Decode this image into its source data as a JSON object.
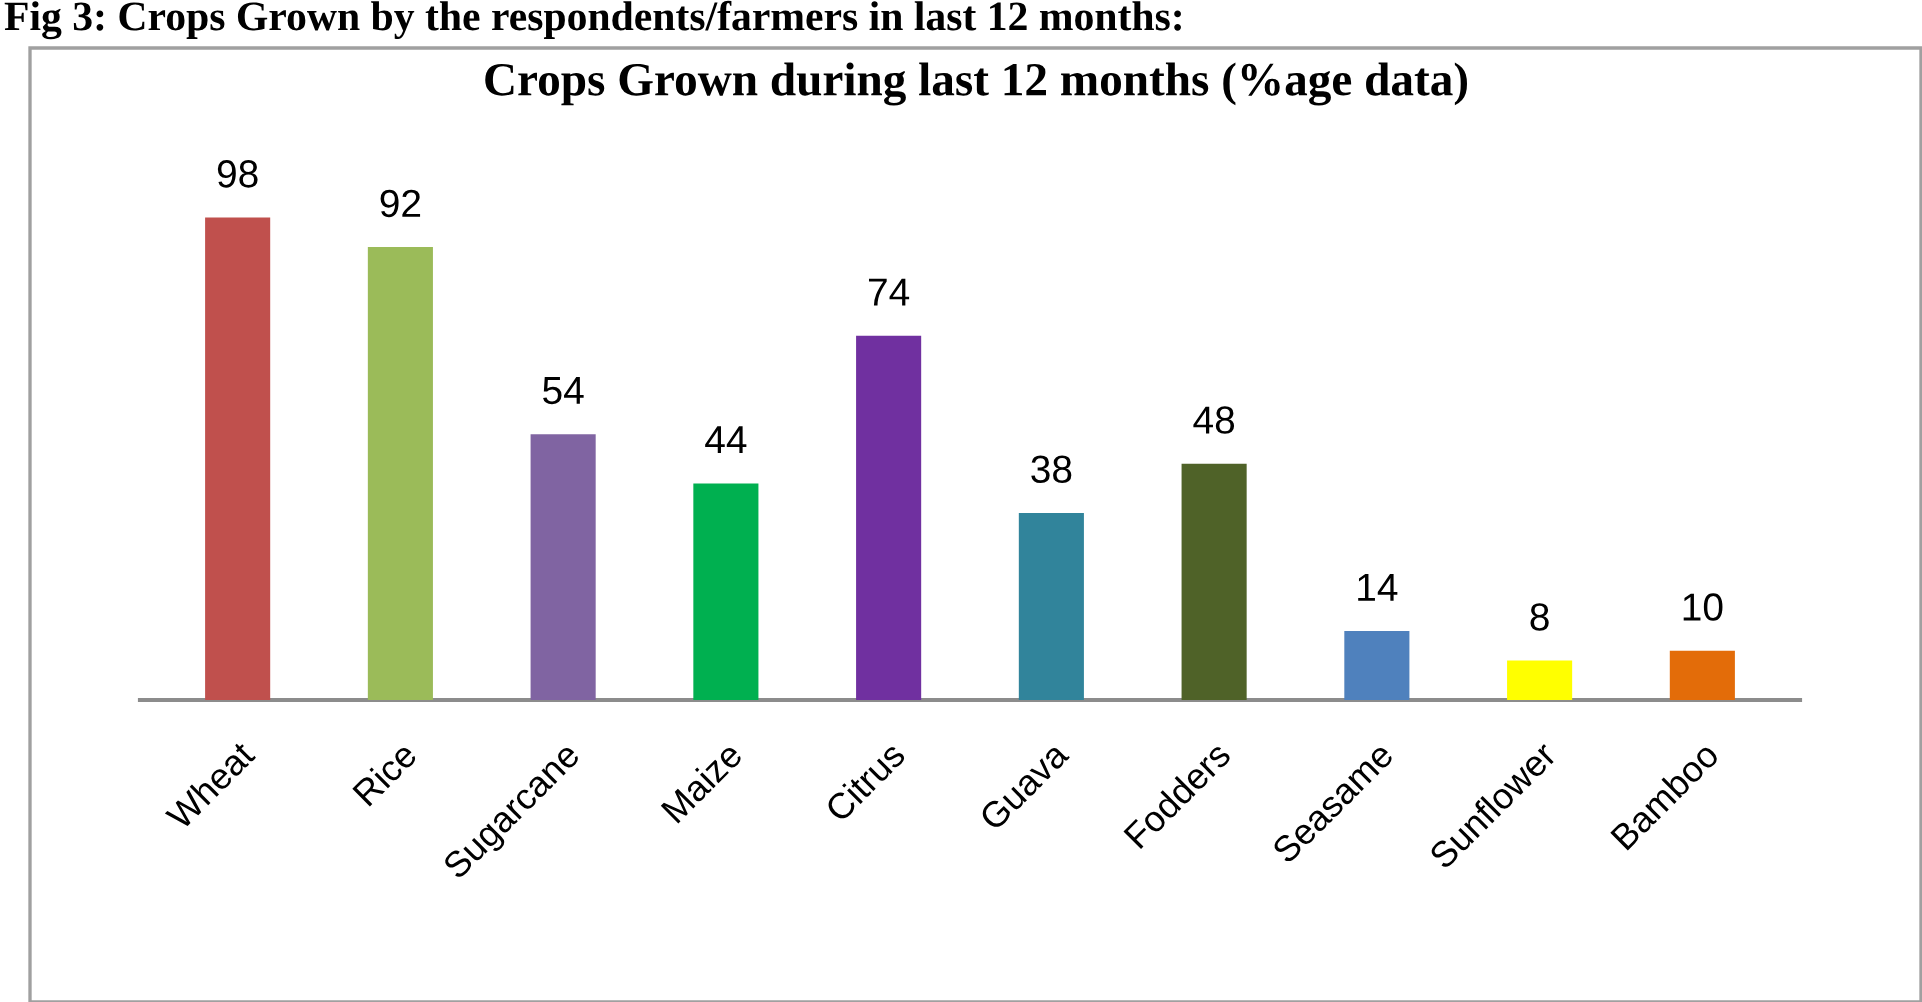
{
  "chart_data": {
    "type": "bar",
    "title": "Crops Grown during last 12 months (%age data)",
    "annotations": [
      "Fig 3: Crops Grown by the respondents/farmers in last 12 months:"
    ],
    "categories": [
      "Wheat",
      "Rice",
      "Sugarcane",
      "Maize",
      "Citrus",
      "Guava",
      "Fodders",
      "Seasame",
      "Sunflower",
      "Bamboo"
    ],
    "values": [
      98,
      92,
      54,
      44,
      74,
      38,
      48,
      14,
      8,
      10
    ],
    "colors": [
      "#c0504d",
      "#9bbb59",
      "#8064a2",
      "#00b050",
      "#7030a0",
      "#31849b",
      "#4f6228",
      "#4f81bd",
      "#ffff00",
      "#e36c09"
    ],
    "data_labels": true
  }
}
